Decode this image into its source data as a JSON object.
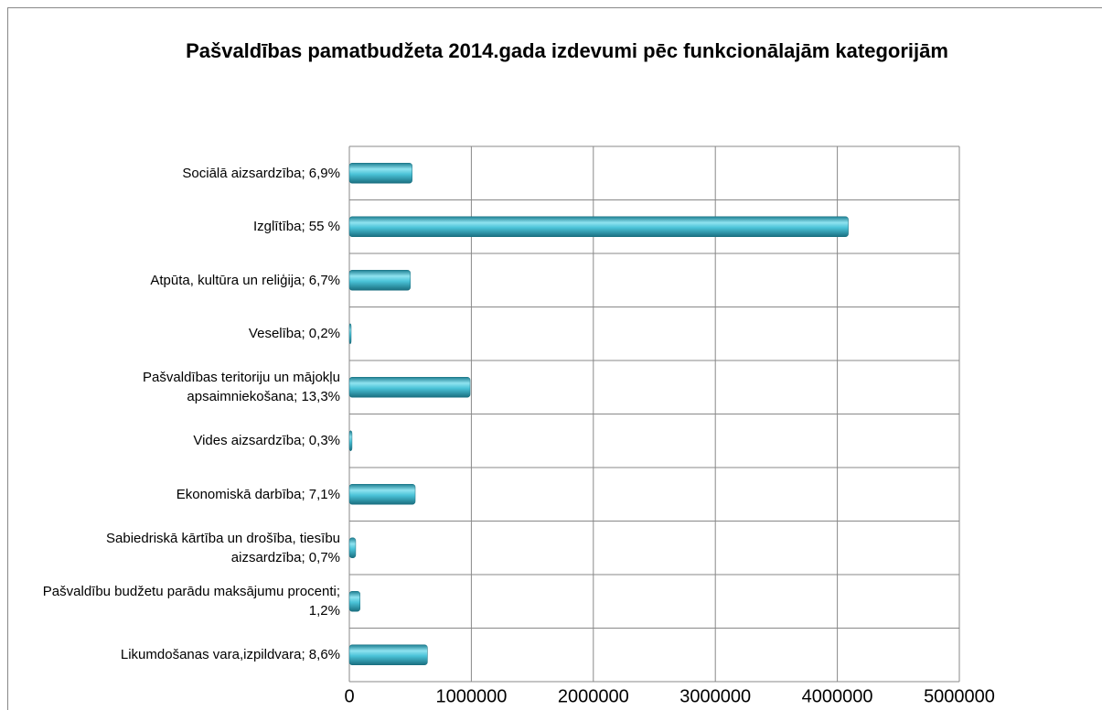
{
  "chart_data": {
    "type": "bar",
    "orientation": "horizontal",
    "title": "Pašvaldības pamatbudžeta 2014.gada izdevumi pēc funkcionālajām kategorijām",
    "categories": [
      "Sociālā aizsardzība; 6,9%",
      "Izglītība; 55 %",
      "Atpūta, kultūra un reliģija; 6,7%",
      "Veselība; 0,2%",
      "Pašvaldības teritoriju un mājokļu apsaimniekošana; 13,3%",
      "Vides aizsardzība; 0,3%",
      "Ekonomiskā darbība; 7,1%",
      "Sabiedriskā kārtība un drošība, tiesību aizsardzība; 0,7%",
      "Pašvaldību budžetu parādu maksājumu procenti; 1,2%",
      "Likumdošanas vara,izpildvara; 8,6%"
    ],
    "values": [
      515000,
      4090000,
      500000,
      15000,
      990000,
      22000,
      540000,
      52000,
      88000,
      640000
    ],
    "color": "#4bc3d8",
    "xlim": [
      0,
      5000000
    ],
    "xticks": [
      0,
      1000000,
      2000000,
      3000000,
      4000000,
      5000000
    ],
    "grid": true
  }
}
